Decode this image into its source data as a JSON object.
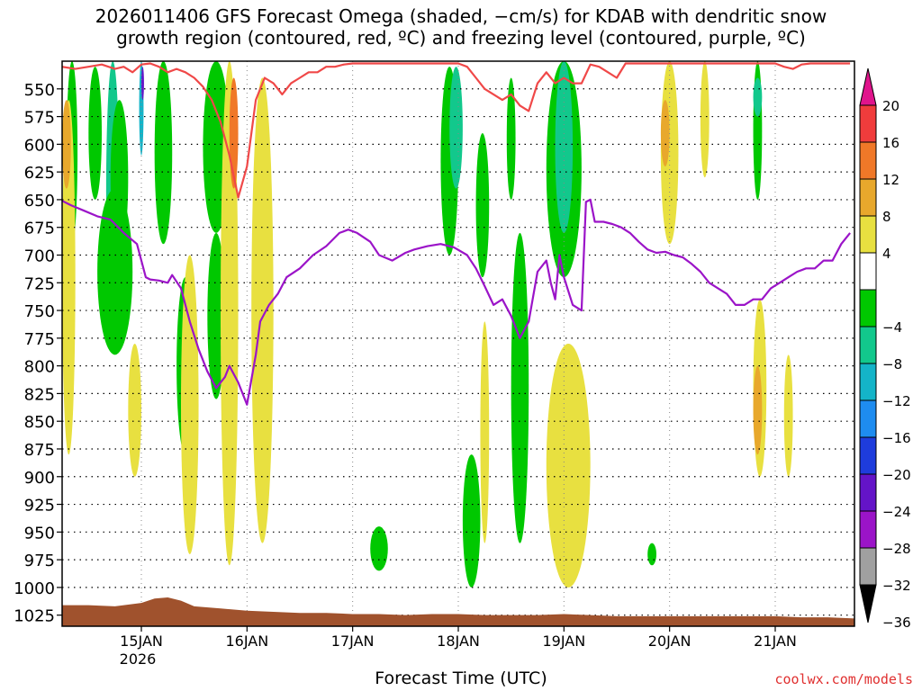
{
  "chart_data": {
    "type": "heatmap",
    "title": "2026011406 GFS Forecast Omega (shaded, −cm/s) for KDAB with dendritic snow\ngrowth region (contoured, red, ºC) and freezing level (contoured, purple, ºC)",
    "xlabel": "Forecast Time (UTC)",
    "ylabel": "",
    "y_ticks": [
      550,
      575,
      600,
      625,
      650,
      675,
      700,
      725,
      750,
      775,
      800,
      825,
      850,
      875,
      900,
      925,
      950,
      975,
      1000,
      1025
    ],
    "ylim": [
      1035,
      525
    ],
    "x_ticks": [
      {
        "label": "15JAN",
        "sub": "2026",
        "hour": 18
      },
      {
        "label": "16JAN",
        "sub": "",
        "hour": 42
      },
      {
        "label": "17JAN",
        "sub": "",
        "hour": 66
      },
      {
        "label": "18JAN",
        "sub": "",
        "hour": 90
      },
      {
        "label": "19JAN",
        "sub": "",
        "hour": 114
      },
      {
        "label": "20JAN",
        "sub": "",
        "hour": 138
      },
      {
        "label": "21JAN",
        "sub": "",
        "hour": 162
      }
    ],
    "xlim": [
      0,
      180
    ],
    "colorbar": {
      "labels": [
        "20",
        "16",
        "12",
        "8",
        "4",
        "−4",
        "−8",
        "−12",
        "−16",
        "−20",
        "−24",
        "−28",
        "−32",
        "−36"
      ],
      "colors": [
        "#e0148c",
        "#f03c3c",
        "#f07828",
        "#e8a82c",
        "#e8e040",
        "#ffffff",
        "#00c800",
        "#12c88c",
        "#14b4c8",
        "#1e8cf0",
        "#1e3cdc",
        "#6414c8",
        "#9b14c8",
        "#a0a0a0",
        "#000000"
      ]
    },
    "series": [
      {
        "name": "freezing level",
        "color": "#9b14c8",
        "label": "0",
        "x": [
          0,
          2,
          5,
          8,
          11,
          12,
          14,
          17,
          18,
          19,
          20,
          22,
          24,
          25,
          27,
          29,
          31,
          33,
          35,
          37,
          38,
          40,
          42,
          44,
          45,
          47,
          49,
          51,
          54,
          57,
          60,
          63,
          65,
          67,
          70,
          72,
          75,
          78,
          80,
          83,
          86,
          89,
          92,
          94,
          96,
          98,
          100,
          102,
          104,
          106,
          108,
          110,
          111,
          112,
          113,
          114,
          116,
          118,
          119,
          120,
          121,
          123,
          125,
          127,
          129,
          131,
          133,
          135,
          137,
          139,
          141,
          143,
          145,
          147,
          149,
          151,
          153,
          155,
          157,
          159,
          161,
          163,
          165,
          167,
          169,
          171,
          173,
          175,
          177,
          179
        ],
        "y": [
          651,
          655,
          660,
          665,
          668,
          672,
          680,
          690,
          705,
          720,
          722,
          723,
          725,
          718,
          730,
          760,
          785,
          805,
          820,
          810,
          800,
          815,
          835,
          790,
          760,
          745,
          735,
          720,
          712,
          700,
          692,
          680,
          677,
          680,
          688,
          700,
          705,
          698,
          695,
          692,
          690,
          693,
          700,
          712,
          728,
          745,
          740,
          755,
          775,
          760,
          715,
          705,
          725,
          740,
          700,
          720,
          745,
          750,
          652,
          650,
          670,
          670,
          672,
          675,
          680,
          688,
          695,
          698,
          697,
          700,
          702,
          708,
          715,
          725,
          730,
          735,
          745,
          745,
          740,
          740,
          730,
          725,
          720,
          715,
          712,
          712,
          705,
          705,
          690,
          680
        ]
      },
      {
        "name": "dendritic snow growth region",
        "color": "#f04848",
        "label": "",
        "x": [
          0,
          3,
          6,
          9,
          12,
          14,
          16,
          18,
          20,
          22,
          24,
          26,
          28,
          30,
          32,
          34,
          36,
          38,
          40,
          42,
          44,
          46,
          48,
          50,
          52,
          54,
          56,
          58,
          60,
          62,
          64,
          66,
          68,
          70,
          72,
          74,
          76,
          78,
          80,
          82,
          84,
          86,
          88,
          90,
          92,
          94,
          96,
          98,
          100,
          102,
          104,
          106,
          108,
          110,
          112,
          114,
          116,
          118,
          120,
          122,
          124,
          126,
          128,
          130,
          132,
          134,
          136,
          138,
          140,
          142,
          144,
          146,
          148,
          150,
          152,
          154,
          156,
          158,
          160,
          162,
          164,
          166,
          168,
          170,
          172,
          174,
          176,
          178,
          179
        ],
        "y": [
          530,
          532,
          530,
          528,
          532,
          530,
          535,
          528,
          527,
          530,
          535,
          532,
          535,
          540,
          548,
          560,
          580,
          610,
          648,
          620,
          560,
          540,
          545,
          555,
          545,
          540,
          535,
          535,
          530,
          530,
          528,
          527,
          527,
          527,
          527,
          527,
          527,
          527,
          527,
          527,
          527,
          527,
          527,
          527,
          530,
          540,
          550,
          555,
          560,
          555,
          565,
          570,
          545,
          535,
          545,
          540,
          545,
          545,
          528,
          530,
          535,
          540,
          527,
          527,
          527,
          527,
          527,
          527,
          527,
          527,
          527,
          527,
          527,
          527,
          527,
          527,
          527,
          527,
          527,
          527,
          530,
          532,
          528,
          527,
          527,
          527,
          527,
          527,
          527
        ]
      },
      {
        "name": "ground",
        "color": "#a0522d",
        "label": "",
        "x": [
          0,
          6,
          12,
          18,
          21,
          24,
          27,
          30,
          36,
          42,
          48,
          54,
          60,
          66,
          72,
          78,
          84,
          90,
          96,
          102,
          108,
          114,
          120,
          126,
          132,
          138,
          144,
          150,
          156,
          162,
          168,
          174,
          180
        ],
        "y": [
          1016,
          1016,
          1017,
          1014,
          1010,
          1009,
          1012,
          1017,
          1019,
          1021,
          1022,
          1023,
          1023,
          1024,
          1024,
          1025,
          1024,
          1024,
          1025,
          1025,
          1025,
          1024,
          1025,
          1026,
          1026,
          1026,
          1026,
          1026,
          1026,
          1026,
          1027,
          1027,
          1028
        ]
      }
    ],
    "shading": [
      {
        "band": "-8",
        "x0": 1,
        "x1": 3.5,
        "p0": 525,
        "p1": 690
      },
      {
        "band": "-12",
        "x0": 10,
        "x1": 13,
        "p0": 525,
        "p1": 760
      },
      {
        "band": "-8",
        "x0": 11,
        "x1": 15,
        "p0": 560,
        "p1": 700
      },
      {
        "band": "-8",
        "x0": 6,
        "x1": 9,
        "p0": 530,
        "p1": 650
      },
      {
        "band": "-8",
        "x0": 8,
        "x1": 16,
        "p0": 640,
        "p1": 790
      },
      {
        "band": "-16",
        "x0": 17.5,
        "x1": 18.5,
        "p0": 525,
        "p1": 610
      },
      {
        "band": "-24",
        "x0": 18,
        "x1": 18.6,
        "p0": 530,
        "p1": 560
      },
      {
        "band": "-8",
        "x0": 21,
        "x1": 25,
        "p0": 525,
        "p1": 690
      },
      {
        "band": "-8",
        "x0": 26,
        "x1": 30,
        "p0": 720,
        "p1": 880
      },
      {
        "band": "-8",
        "x0": 32,
        "x1": 38,
        "p0": 525,
        "p1": 680
      },
      {
        "band": "-8",
        "x0": 33,
        "x1": 37,
        "p0": 680,
        "p1": 830
      },
      {
        "band": "-8",
        "x0": 70,
        "x1": 74,
        "p0": 945,
        "p1": 985
      },
      {
        "band": "-8",
        "x0": 86,
        "x1": 90,
        "p0": 530,
        "p1": 700
      },
      {
        "band": "-12",
        "x0": 88,
        "x1": 91,
        "p0": 530,
        "p1": 640
      },
      {
        "band": "-8",
        "x0": 94,
        "x1": 97,
        "p0": 590,
        "p1": 720
      },
      {
        "band": "-8",
        "x0": 91,
        "x1": 95,
        "p0": 880,
        "p1": 1000
      },
      {
        "band": "-8",
        "x0": 101,
        "x1": 103,
        "p0": 540,
        "p1": 650
      },
      {
        "band": "-8",
        "x0": 102,
        "x1": 106,
        "p0": 680,
        "p1": 960
      },
      {
        "band": "-8",
        "x0": 110,
        "x1": 118,
        "p0": 525,
        "p1": 720
      },
      {
        "band": "-12",
        "x0": 112,
        "x1": 116,
        "p0": 525,
        "p1": 680
      },
      {
        "band": "-8",
        "x0": 133,
        "x1": 135,
        "p0": 960,
        "p1": 980
      },
      {
        "band": "-8",
        "x0": 157,
        "x1": 159,
        "p0": 525,
        "p1": 650
      },
      {
        "band": "-12",
        "x0": 157,
        "x1": 159,
        "p0": 540,
        "p1": 575
      },
      {
        "band": "4",
        "x0": 0,
        "x1": 3,
        "p0": 560,
        "p1": 880
      },
      {
        "band": "8",
        "x0": 0,
        "x1": 2,
        "p0": 560,
        "p1": 640
      },
      {
        "band": "4",
        "x0": 15,
        "x1": 18,
        "p0": 780,
        "p1": 900
      },
      {
        "band": "4",
        "x0": 27,
        "x1": 31,
        "p0": 700,
        "p1": 970
      },
      {
        "band": "4",
        "x0": 36,
        "x1": 40,
        "p0": 525,
        "p1": 980
      },
      {
        "band": "12",
        "x0": 38,
        "x1": 40,
        "p0": 540,
        "p1": 640
      },
      {
        "band": "4",
        "x0": 43,
        "x1": 48,
        "p0": 540,
        "p1": 960
      },
      {
        "band": "4",
        "x0": 95,
        "x1": 97,
        "p0": 760,
        "p1": 960
      },
      {
        "band": "4",
        "x0": 110,
        "x1": 120,
        "p0": 780,
        "p1": 1000
      },
      {
        "band": "4",
        "x0": 136,
        "x1": 140,
        "p0": 525,
        "p1": 690
      },
      {
        "band": "8",
        "x0": 136,
        "x1": 138,
        "p0": 560,
        "p1": 620
      },
      {
        "band": "4",
        "x0": 145,
        "x1": 147,
        "p0": 525,
        "p1": 630
      },
      {
        "band": "4",
        "x0": 157,
        "x1": 160,
        "p0": 740,
        "p1": 900
      },
      {
        "band": "8",
        "x0": 157,
        "x1": 159,
        "p0": 800,
        "p1": 880
      },
      {
        "band": "4",
        "x0": 164,
        "x1": 166,
        "p0": 790,
        "p1": 900
      }
    ]
  },
  "credit": "coolwx.com/models"
}
